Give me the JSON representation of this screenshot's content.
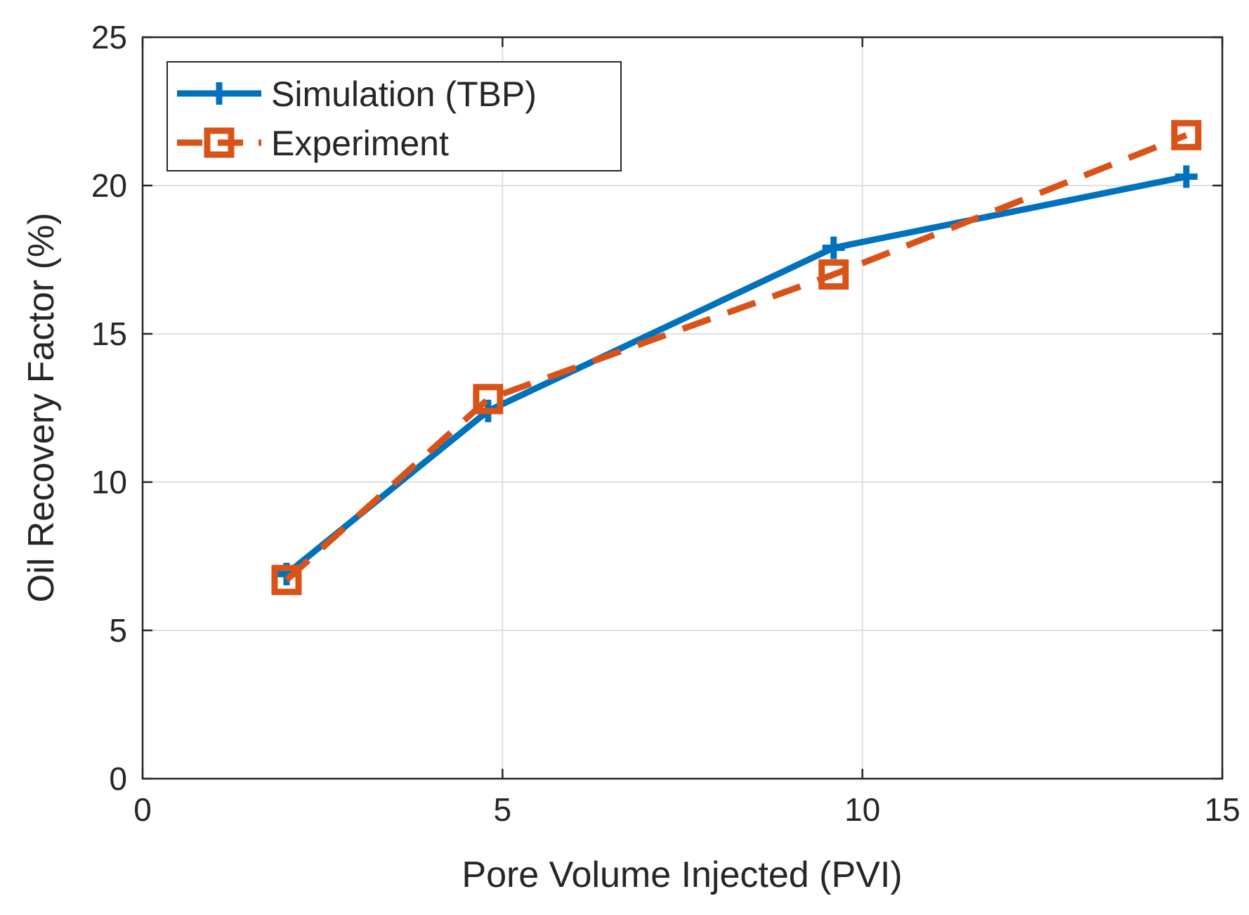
{
  "chart_data": {
    "type": "line",
    "xlabel": "Pore Volume Injected (PVI)",
    "ylabel": "Oil Recovery Factor (%)",
    "xlim": [
      0,
      15
    ],
    "ylim": [
      0,
      25
    ],
    "xticks": [
      0,
      5,
      10,
      15
    ],
    "yticks": [
      0,
      5,
      10,
      15,
      20,
      25
    ],
    "grid": true,
    "legend_position": "top-left",
    "series": [
      {
        "name": "Simulation (TBP)",
        "color": "#0072BD",
        "line_style": "solid",
        "marker": "plus",
        "x": [
          2.0,
          4.8,
          9.6,
          14.5
        ],
        "y": [
          6.9,
          12.4,
          17.9,
          20.3
        ]
      },
      {
        "name": "Experiment",
        "color": "#D95319",
        "line_style": "dashed",
        "marker": "square",
        "x": [
          2.0,
          4.8,
          9.6,
          14.5
        ],
        "y": [
          6.7,
          12.8,
          17.0,
          21.7
        ]
      }
    ]
  }
}
